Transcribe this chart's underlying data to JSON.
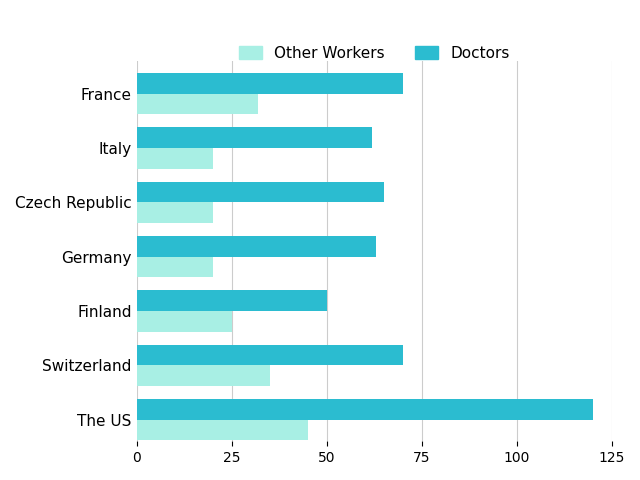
{
  "categories": [
    "France",
    "Italy",
    "Czech Republic",
    "Germany",
    "Finland",
    "Switzerland",
    "The US"
  ],
  "other_workers": [
    32,
    20,
    20,
    20,
    25,
    35,
    45
  ],
  "doctors": [
    70,
    62,
    65,
    63,
    50,
    70,
    120
  ],
  "color_other": "#A8EFE4",
  "color_doctors": "#2BBCD0",
  "legend_other": "Other Workers",
  "legend_doctors": "Doctors",
  "xlim": [
    0,
    125
  ],
  "xticks": [
    0,
    25,
    50,
    75,
    100,
    125
  ],
  "background_color": "#FFFFFF",
  "bar_height": 0.38,
  "grid_color": "#CCCCCC"
}
